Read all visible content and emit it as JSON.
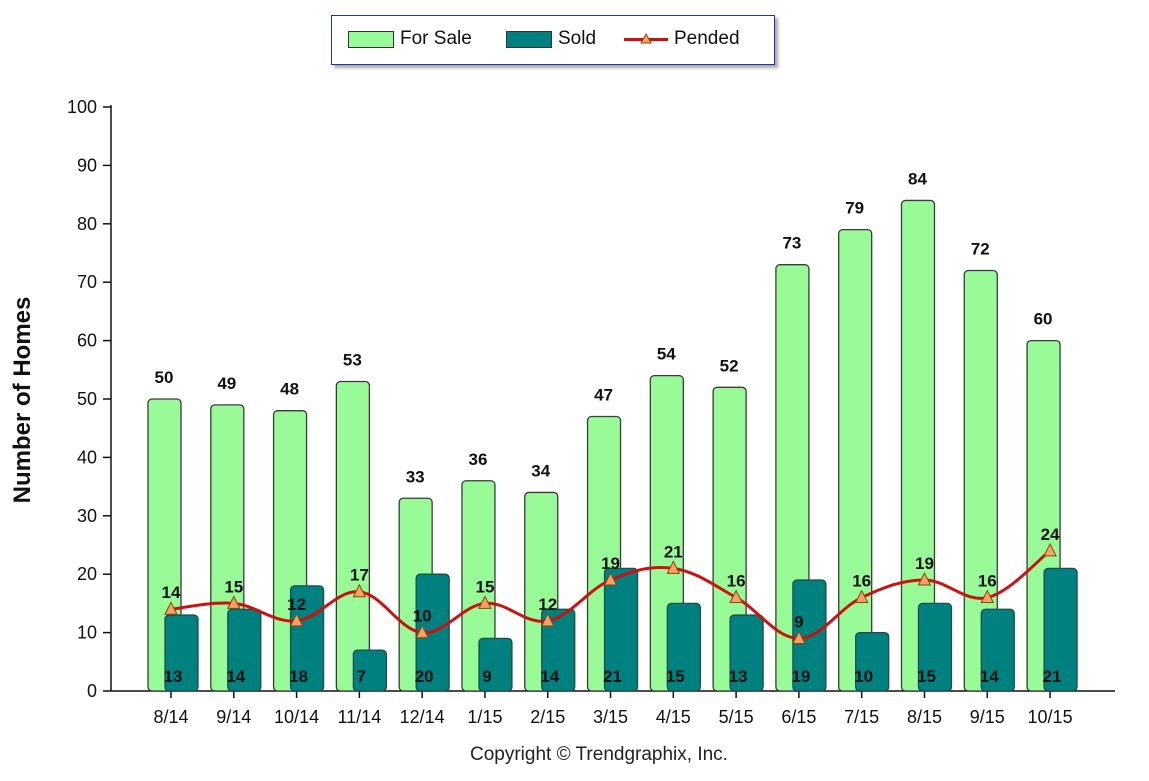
{
  "chart_data": {
    "type": "bar",
    "categories": [
      "8/14",
      "9/14",
      "10/14",
      "11/14",
      "12/14",
      "1/15",
      "2/15",
      "3/15",
      "4/15",
      "5/15",
      "6/15",
      "7/15",
      "8/15",
      "9/15",
      "10/15"
    ],
    "series": [
      {
        "name": "For Sale",
        "kind": "bar",
        "color": "#98fb98",
        "values": [
          50,
          49,
          48,
          53,
          33,
          36,
          34,
          47,
          54,
          52,
          73,
          79,
          84,
          72,
          60
        ]
      },
      {
        "name": "Sold",
        "kind": "bar",
        "color": "#00807f",
        "values": [
          13,
          14,
          18,
          7,
          20,
          9,
          14,
          21,
          15,
          13,
          19,
          10,
          15,
          14,
          21
        ]
      },
      {
        "name": "Pended",
        "kind": "line",
        "color": "#cc1111",
        "marker": "triangle",
        "marker_color": "#f4a460",
        "values": [
          14,
          15,
          12,
          17,
          10,
          15,
          12,
          19,
          21,
          16,
          9,
          16,
          19,
          16,
          24
        ]
      }
    ],
    "ylabel": "Number of Homes",
    "ylim": [
      0,
      100
    ],
    "yticks": [
      0,
      10,
      20,
      30,
      40,
      50,
      60,
      70,
      80,
      90,
      100
    ],
    "legend_position": "top-center",
    "grid": false
  },
  "legend": {
    "for_sale": "For Sale",
    "sold": "Sold",
    "pended": "Pended"
  },
  "footer": {
    "copyright": "Copyright © Trendgraphix, Inc."
  }
}
